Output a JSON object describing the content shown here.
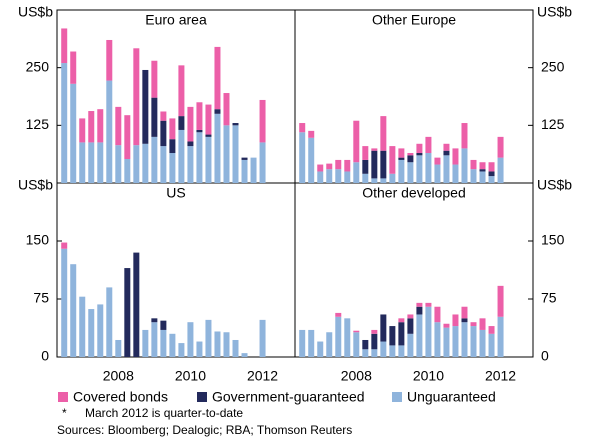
{
  "chart_data": [
    {
      "type": "bar",
      "title": "Euro area",
      "y_label": "US$b",
      "xlim": [
        2006.3,
        2012.9
      ],
      "ylim": [
        0,
        375
      ],
      "yticks": [
        125,
        250
      ],
      "x": [
        2006.5,
        2006.75,
        2007,
        2007.25,
        2007.5,
        2007.75,
        2008,
        2008.25,
        2008.5,
        2008.75,
        2009,
        2009.25,
        2009.5,
        2009.75,
        2010,
        2010.25,
        2010.5,
        2010.75,
        2011,
        2011.25,
        2011.5,
        2011.75,
        2012
      ],
      "series": [
        {
          "name": "Covered bonds",
          "color": "#ec5fa8",
          "values": [
            75,
            70,
            52,
            68,
            72,
            88,
            83,
            95,
            210,
            0,
            80,
            20,
            45,
            110,
            75,
            60,
            65,
            135,
            70,
            0,
            0,
            0,
            92
          ]
        },
        {
          "name": "Government-guaranteed",
          "color": "#232a5c",
          "values": [
            0,
            0,
            0,
            0,
            0,
            0,
            0,
            0,
            0,
            160,
            85,
            55,
            30,
            30,
            10,
            5,
            5,
            10,
            0,
            5,
            5,
            0,
            0
          ]
        },
        {
          "name": "Unguaranteed",
          "color": "#8fb4dc",
          "values": [
            260,
            215,
            88,
            88,
            88,
            222,
            82,
            52,
            82,
            85,
            100,
            80,
            65,
            115,
            80,
            110,
            100,
            150,
            125,
            125,
            50,
            55,
            88
          ]
        }
      ]
    },
    {
      "type": "bar",
      "title": "Other Europe",
      "y_label": "US$b",
      "xlim": [
        2006.3,
        2012.9
      ],
      "ylim": [
        0,
        375
      ],
      "yticks": [
        125,
        250
      ],
      "x": [
        2006.5,
        2006.75,
        2007,
        2007.25,
        2007.5,
        2007.75,
        2008,
        2008.25,
        2008.5,
        2008.75,
        2009,
        2009.25,
        2009.5,
        2009.75,
        2010,
        2010.25,
        2010.5,
        2010.75,
        2011,
        2011.25,
        2011.5,
        2011.75,
        2012
      ],
      "series": [
        {
          "color": "#ec5fa8",
          "values": [
            20,
            15,
            15,
            12,
            20,
            25,
            90,
            30,
            5,
            75,
            60,
            20,
            5,
            20,
            35,
            15,
            15,
            35,
            55,
            20,
            15,
            20,
            45
          ]
        },
        {
          "color": "#232a5c",
          "values": [
            0,
            0,
            0,
            0,
            0,
            0,
            0,
            30,
            60,
            60,
            0,
            5,
            15,
            5,
            0,
            0,
            10,
            0,
            0,
            0,
            5,
            10,
            0
          ]
        },
        {
          "color": "#8fb4dc",
          "values": [
            110,
            98,
            25,
            30,
            30,
            25,
            45,
            20,
            10,
            10,
            20,
            50,
            45,
            60,
            65,
            40,
            60,
            40,
            75,
            30,
            25,
            15,
            55
          ]
        }
      ]
    },
    {
      "type": "bar",
      "title": "US",
      "y_label": "US$b",
      "xlim": [
        2006.3,
        2012.9
      ],
      "ylim": [
        0,
        225
      ],
      "yticks": [
        0,
        75,
        150
      ],
      "xticks": [
        2008,
        2010,
        2012
      ],
      "x": [
        2006.5,
        2006.75,
        2007,
        2007.25,
        2007.5,
        2007.75,
        2008,
        2008.25,
        2008.5,
        2008.75,
        2009,
        2009.25,
        2009.5,
        2009.75,
        2010,
        2010.25,
        2010.5,
        2010.75,
        2011,
        2011.25,
        2011.5,
        2011.75,
        2012
      ],
      "series": [
        {
          "color": "#ec5fa8",
          "values": [
            8,
            0,
            0,
            0,
            0,
            0,
            0,
            0,
            0,
            0,
            0,
            0,
            0,
            0,
            0,
            0,
            0,
            0,
            0,
            0,
            0,
            0,
            0
          ]
        },
        {
          "color": "#232a5c",
          "values": [
            0,
            0,
            0,
            0,
            0,
            0,
            0,
            115,
            135,
            0,
            5,
            12,
            0,
            0,
            0,
            0,
            0,
            0,
            0,
            0,
            0,
            0,
            0
          ]
        },
        {
          "color": "#8fb4dc",
          "values": [
            140,
            120,
            78,
            62,
            68,
            90,
            22,
            0,
            0,
            35,
            45,
            35,
            30,
            18,
            45,
            20,
            48,
            33,
            32,
            22,
            5,
            0,
            48
          ]
        }
      ]
    },
    {
      "type": "bar",
      "title": "Other developed",
      "y_label": "US$b",
      "xlim": [
        2006.3,
        2012.9
      ],
      "ylim": [
        0,
        225
      ],
      "yticks": [
        0,
        75,
        150
      ],
      "xticks": [
        2008,
        2010,
        2012
      ],
      "x": [
        2006.5,
        2006.75,
        2007,
        2007.25,
        2007.5,
        2007.75,
        2008,
        2008.25,
        2008.5,
        2008.75,
        2009,
        2009.25,
        2009.5,
        2009.75,
        2010,
        2010.25,
        2010.5,
        2010.75,
        2011,
        2011.25,
        2011.5,
        2011.75,
        2012
      ],
      "series": [
        {
          "color": "#ec5fa8",
          "values": [
            0,
            0,
            0,
            0,
            5,
            0,
            2,
            0,
            5,
            0,
            0,
            5,
            5,
            5,
            5,
            20,
            5,
            15,
            15,
            5,
            15,
            10,
            40
          ]
        },
        {
          "color": "#232a5c",
          "values": [
            0,
            0,
            0,
            0,
            0,
            0,
            0,
            12,
            20,
            35,
            25,
            30,
            20,
            10,
            0,
            0,
            0,
            0,
            5,
            0,
            0,
            0,
            0
          ]
        },
        {
          "color": "#8fb4dc",
          "values": [
            35,
            35,
            20,
            32,
            52,
            50,
            32,
            10,
            10,
            20,
            15,
            15,
            30,
            55,
            65,
            45,
            38,
            40,
            45,
            40,
            35,
            30,
            52
          ]
        }
      ]
    }
  ],
  "footnote": {
    "mark": "*",
    "text": "March 2012 is quarter-to-date"
  },
  "source": "Sources: Bloomberg; Dealogic; RBA; Thomson Reuters"
}
